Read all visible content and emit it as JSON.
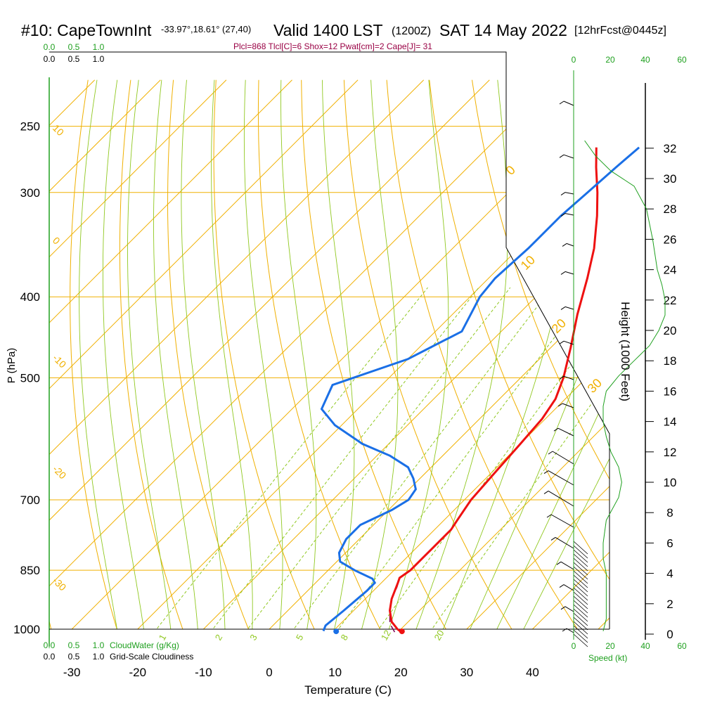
{
  "header": {
    "station": "#10: CapeTownInt",
    "coords": "-33.97°,18.61° (27,40)",
    "valid": "Valid 1400 LST",
    "zulu": "(1200Z)",
    "date": "SAT 14 May 2022",
    "forecast": "[12hrFcst@0445z]"
  },
  "indices_line": "Plcl=868 Tlcl[C]=6 Shox=12 Pwat[cm]=2 Cape[J]= 31",
  "scales": {
    "cloudwater_ticks": [
      "0.0",
      "0.5",
      "1.0"
    ],
    "cloudiness_ticks": [
      "0.0",
      "0.5",
      "1.0"
    ],
    "cloudwater_label": "CloudWater (g/Kg)",
    "cloudiness_label": "Grid-Scale Cloudiness",
    "speed_ticks": [
      "0",
      "20",
      "40",
      "60"
    ],
    "speed_label": "Speed (kt)"
  },
  "colors": {
    "temperature": "#ee1111",
    "dewpoint": "#1a6fe6",
    "isotherm": "#f0b000",
    "dry_adiabat": "#f0b000",
    "moist_adiabat": "#90c820",
    "mixing_ratio": "#90c820",
    "cloud_green": "#1fa01f",
    "indices": "#990044"
  },
  "chart_data": {
    "type": "line",
    "title": "#10: CapeTownInt Valid 1400 LST (1200Z) SAT 14 May 2022",
    "xlabel": "Temperature (C)",
    "ylabel": "P (hPa)",
    "y2label": "Height (1000 Feet)",
    "pressure_ticks": [
      250,
      300,
      400,
      500,
      700,
      850,
      1000
    ],
    "temperature_ticks": [
      -30,
      -20,
      -10,
      0,
      10,
      20,
      30,
      40
    ],
    "height_ticks": [
      0,
      2,
      4,
      6,
      8,
      10,
      12,
      14,
      16,
      18,
      20,
      22,
      24,
      26,
      28,
      30,
      32
    ],
    "dry_adiabat_labels": [
      -30,
      -20,
      -10,
      0,
      10,
      20,
      30
    ],
    "dry_adiabat_label_side": [
      "10",
      "0",
      "-10",
      "-20",
      "-30"
    ],
    "moist_adiabat_labels": [
      "10",
      "20",
      "30"
    ],
    "mixing_ratio_labels": [
      "1",
      "2",
      "3",
      "5",
      "8",
      "12",
      "20"
    ],
    "series": [
      {
        "name": "Temperature",
        "points": [
          {
            "p": 1008,
            "t": 20.5
          },
          {
            "p": 1000,
            "t": 19.5
          },
          {
            "p": 980,
            "t": 17.5
          },
          {
            "p": 950,
            "t": 15.5
          },
          {
            "p": 920,
            "t": 14.0
          },
          {
            "p": 880,
            "t": 12.5
          },
          {
            "p": 868,
            "t": 12.0
          },
          {
            "p": 850,
            "t": 12.5
          },
          {
            "p": 820,
            "t": 12.5
          },
          {
            "p": 800,
            "t": 12.5
          },
          {
            "p": 760,
            "t": 12.5
          },
          {
            "p": 740,
            "t": 12.0
          },
          {
            "p": 700,
            "t": 11.0
          },
          {
            "p": 650,
            "t": 10.5
          },
          {
            "p": 600,
            "t": 10.0
          },
          {
            "p": 560,
            "t": 9.5
          },
          {
            "p": 530,
            "t": 8.5
          },
          {
            "p": 500,
            "t": 6.5
          },
          {
            "p": 460,
            "t": 3.0
          },
          {
            "p": 420,
            "t": -1.0
          },
          {
            "p": 380,
            "t": -5.0
          },
          {
            "p": 350,
            "t": -8.5
          },
          {
            "p": 320,
            "t": -13.0
          },
          {
            "p": 300,
            "t": -16.5
          },
          {
            "p": 280,
            "t": -20.5
          },
          {
            "p": 265,
            "t": -23.5
          }
        ]
      },
      {
        "name": "Dewpoint",
        "points": [
          {
            "p": 1005,
            "t": 8.5
          },
          {
            "p": 990,
            "t": 8.0
          },
          {
            "p": 950,
            "t": 8.5
          },
          {
            "p": 900,
            "t": 9.0
          },
          {
            "p": 880,
            "t": 9.0
          },
          {
            "p": 870,
            "t": 8.0
          },
          {
            "p": 850,
            "t": 4.0
          },
          {
            "p": 830,
            "t": 0.5
          },
          {
            "p": 810,
            "t": -1.0
          },
          {
            "p": 780,
            "t": -2.0
          },
          {
            "p": 750,
            "t": -2.0
          },
          {
            "p": 720,
            "t": 0.5
          },
          {
            "p": 700,
            "t": 1.5
          },
          {
            "p": 680,
            "t": 1.0
          },
          {
            "p": 660,
            "t": -1.0
          },
          {
            "p": 640,
            "t": -3.5
          },
          {
            "p": 620,
            "t": -8.0
          },
          {
            "p": 600,
            "t": -14.0
          },
          {
            "p": 570,
            "t": -21.0
          },
          {
            "p": 545,
            "t": -25.5
          },
          {
            "p": 510,
            "t": -27.5
          },
          {
            "p": 475,
            "t": -20.0
          },
          {
            "p": 440,
            "t": -16.0
          },
          {
            "p": 400,
            "t": -18.5
          },
          {
            "p": 380,
            "t": -19.0
          },
          {
            "p": 350,
            "t": -18.5
          },
          {
            "p": 320,
            "t": -18.5
          },
          {
            "p": 300,
            "t": -18.0
          },
          {
            "p": 280,
            "t": -17.5
          },
          {
            "p": 265,
            "t": -17.0
          }
        ]
      },
      {
        "name": "Parcel",
        "points": [
          {
            "p": 1008,
            "t": 19.5
          },
          {
            "p": 985,
            "t": 17.5
          },
          {
            "p": 950,
            "t": 15.5
          },
          {
            "p": 920,
            "t": 14.0
          },
          {
            "p": 890,
            "t": 13.0
          },
          {
            "p": 868,
            "t": 12.0
          }
        ]
      }
    ],
    "surface_markers": [
      {
        "name": "surface-temperature",
        "p": 1006,
        "t": 20.5
      },
      {
        "name": "surface-dewpoint",
        "p": 1006,
        "t": 10.5
      }
    ],
    "cloud_profile": [
      {
        "z": 0.2,
        "s": 0.1
      },
      {
        "z": 1.0,
        "s": 0.12
      },
      {
        "z": 2.0,
        "s": 0.12
      },
      {
        "z": 3.0,
        "s": 0.12
      },
      {
        "z": 4.0,
        "s": 0.12
      },
      {
        "z": 5.0,
        "s": 0.1
      },
      {
        "z": 6.0,
        "s": 0.1
      },
      {
        "z": 7.5,
        "s": 0.12
      },
      {
        "z": 9.0,
        "s": 0.2
      },
      {
        "z": 10.0,
        "s": 0.22
      },
      {
        "z": 11.0,
        "s": 0.2
      },
      {
        "z": 12.0,
        "s": 0.15
      },
      {
        "z": 13.0,
        "s": 0.12
      },
      {
        "z": 14.0,
        "s": 0.1
      },
      {
        "z": 15.0,
        "s": 0.1
      },
      {
        "z": 16.0,
        "s": 0.12
      },
      {
        "z": 17.0,
        "s": 0.2
      },
      {
        "z": 18.0,
        "s": 0.3
      },
      {
        "z": 19.0,
        "s": 0.4
      },
      {
        "z": 20.0,
        "s": 0.46
      },
      {
        "z": 21.0,
        "s": 0.5
      },
      {
        "z": 22.0,
        "s": 0.5
      },
      {
        "z": 23.0,
        "s": 0.48
      },
      {
        "z": 24.0,
        "s": 0.45
      },
      {
        "z": 26.0,
        "s": 0.42
      },
      {
        "z": 28.0,
        "s": 0.38
      },
      {
        "z": 29.5,
        "s": 0.3
      },
      {
        "z": 30.5,
        "s": 0.15
      },
      {
        "z": 31.5,
        "s": 0.05
      },
      {
        "z": 32.5,
        "s": -0.02
      }
    ]
  }
}
